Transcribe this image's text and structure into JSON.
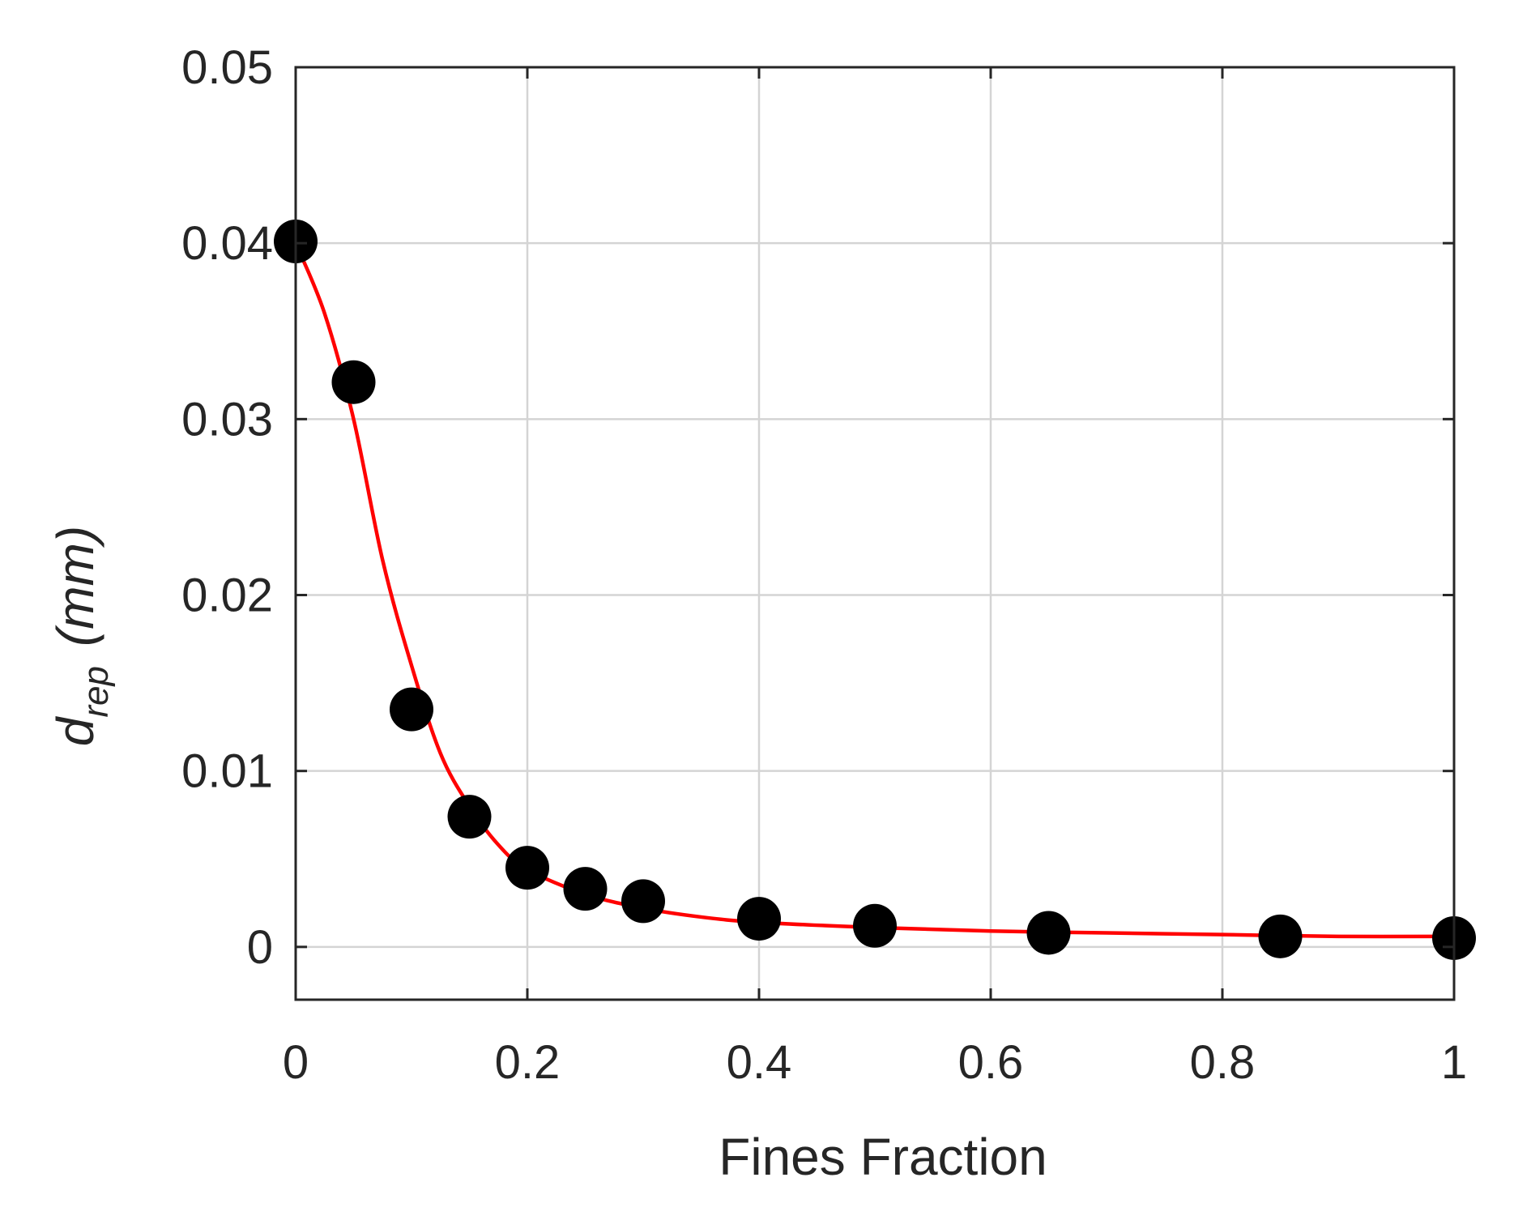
{
  "chart_data": {
    "type": "scatter",
    "title": "",
    "xlabel": "Fines Fraction",
    "ylabel": {
      "main": "d",
      "subscript": "rep",
      "units": "(mm)"
    },
    "xlim": [
      0,
      1
    ],
    "ylim": [
      -0.003,
      0.05
    ],
    "xticks": [
      0,
      0.2,
      0.4,
      0.6,
      0.8,
      1
    ],
    "xtick_labels": [
      "0",
      "0.2",
      "0.4",
      "0.6",
      "0.8",
      "1"
    ],
    "yticks": [
      0,
      0.01,
      0.02,
      0.03,
      0.04,
      0.05
    ],
    "ytick_labels": [
      "0",
      "0.01",
      "0.02",
      "0.03",
      "0.04",
      "0.05"
    ],
    "grid": true,
    "series": [
      {
        "kind": "points",
        "color": "#000000",
        "x": [
          0,
          0.05,
          0.1,
          0.15,
          0.2,
          0.25,
          0.3,
          0.4,
          0.5,
          0.65,
          0.85,
          1.0
        ],
        "y": [
          0.0401,
          0.0321,
          0.0135,
          0.0074,
          0.0045,
          0.0033,
          0.0026,
          0.0016,
          0.0012,
          0.0008,
          0.0006,
          0.0005
        ]
      },
      {
        "kind": "line",
        "color": "#ff0000",
        "x": [
          0,
          0.025,
          0.05,
          0.075,
          0.1,
          0.125,
          0.15,
          0.175,
          0.2,
          0.25,
          0.3,
          0.35,
          0.4,
          0.5,
          0.6,
          0.7,
          0.8,
          0.9,
          1.0
        ],
        "y": [
          0.04,
          0.036,
          0.03,
          0.022,
          0.016,
          0.011,
          0.008,
          0.0058,
          0.0044,
          0.003,
          0.0022,
          0.0017,
          0.0014,
          0.0011,
          0.0009,
          0.0008,
          0.0007,
          0.0006,
          0.0006
        ]
      }
    ]
  }
}
